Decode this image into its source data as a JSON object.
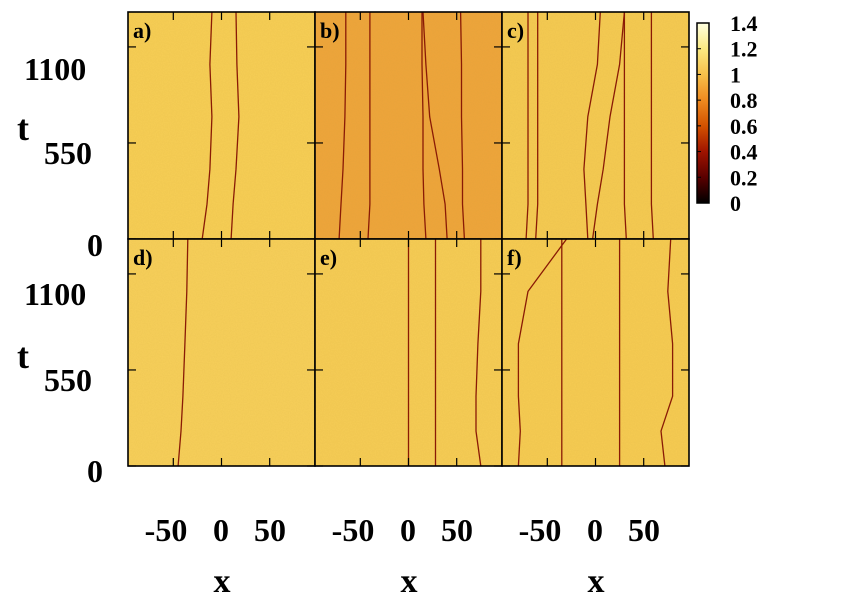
{
  "chart_data": {
    "type": "heatmap",
    "title": "",
    "xlabel": "x",
    "ylabel": "t",
    "x_ticks": [
      "-50",
      "0",
      "50"
    ],
    "y_ticks": [
      "0",
      "550",
      "1100"
    ],
    "colorbar": {
      "ticks": [
        "0",
        "0.2",
        "0.4",
        "0.6",
        "0.8",
        "1",
        "1.2",
        "1.4"
      ],
      "range": [
        0,
        1.4
      ],
      "colors": [
        "#000000",
        "#5a0000",
        "#a01400",
        "#d45200",
        "#ee8a20",
        "#f6c04a",
        "#faea82",
        "#ffffe0"
      ]
    },
    "panels": [
      {
        "label": "a)",
        "background": "#f8cf55",
        "grid_lines": [
          [
            -20,
            -15,
            -12,
            -10,
            -12,
            -10
          ],
          [
            10,
            12,
            15,
            18,
            16,
            15
          ]
        ]
      },
      {
        "label": "b)",
        "background": "#efa43a",
        "grid_lines": [
          [
            -72,
            -70,
            -68,
            -66,
            -65,
            -65
          ],
          [
            -42,
            -40,
            -40,
            -40,
            -40,
            -40
          ],
          [
            18,
            16,
            15,
            15,
            14,
            14
          ],
          [
            58,
            56,
            56,
            55,
            55,
            54
          ],
          [
            40,
            38,
            32,
            22,
            18,
            15
          ]
        ]
      },
      {
        "label": "c)",
        "background": "#f6cb52",
        "grid_lines": [
          [
            -72,
            -70,
            -70,
            -70,
            -70,
            -70
          ],
          [
            -62,
            -60,
            -60,
            -60,
            -60,
            -60
          ],
          [
            -8,
            -10,
            -12,
            -8,
            2,
            5
          ],
          [
            -3,
            2,
            8,
            15,
            25,
            30
          ],
          [
            32,
            30,
            30,
            30,
            30,
            30
          ],
          [
            60,
            58,
            58,
            58,
            58,
            58
          ]
        ]
      },
      {
        "label": "d)",
        "background": "#f8d05a",
        "grid_lines": [
          [
            -45,
            -42,
            -40,
            -38,
            -36,
            -35
          ]
        ]
      },
      {
        "label": "e)",
        "background": "#f7cd55",
        "grid_lines": [
          [
            0,
            0,
            0,
            0,
            0,
            0
          ],
          [
            28,
            28,
            28,
            28,
            28,
            28
          ],
          [
            75,
            70,
            70,
            72,
            75,
            75
          ]
        ]
      },
      {
        "label": "f)",
        "background": "#f7cc52",
        "grid_lines": [
          [
            -80,
            -78,
            -80,
            -80,
            -70,
            -30
          ],
          [
            -35,
            -35,
            -35,
            -35,
            -35,
            -35
          ],
          [
            25,
            25,
            25,
            25,
            25,
            25
          ],
          [
            72,
            68,
            80,
            80,
            75,
            78
          ]
        ]
      }
    ],
    "grid_note_t_values": [
      0,
      200,
      400,
      700,
      1000,
      1300
    ]
  }
}
